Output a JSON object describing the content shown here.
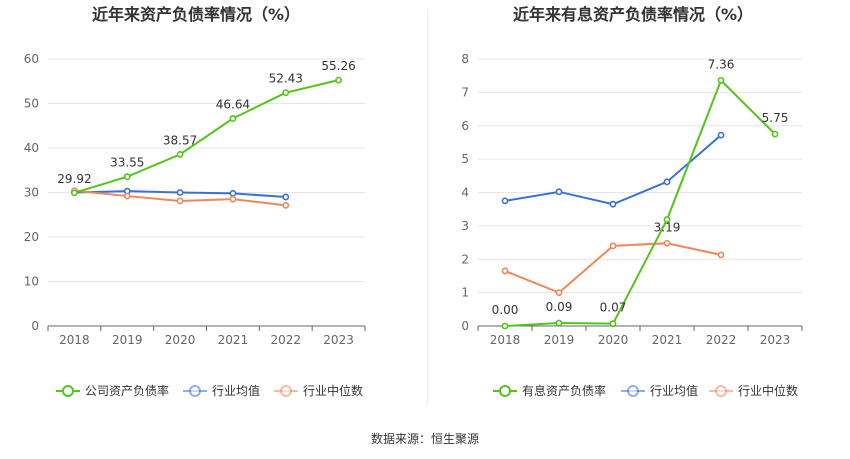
{
  "chart_data": [
    {
      "type": "line",
      "title": "近年来资产负债率情况（%）",
      "categories": [
        "2018",
        "2019",
        "2020",
        "2021",
        "2022",
        "2023"
      ],
      "ylim": [
        0,
        60
      ],
      "yticks": [
        0,
        10,
        20,
        30,
        40,
        50,
        60
      ],
      "grid": true,
      "legend_position": "bottom",
      "series": [
        {
          "name": "公司资产负债率",
          "color": "#52c41a",
          "values": [
            29.92,
            33.55,
            38.57,
            46.64,
            52.43,
            55.26
          ],
          "labels": [
            "29.92",
            "33.55",
            "38.57",
            "46.64",
            "52.43",
            "55.26"
          ]
        },
        {
          "name": "行业均值",
          "color": "#3a70d6",
          "values": [
            30.0,
            30.3,
            30.0,
            29.8,
            29.0,
            null
          ]
        },
        {
          "name": "行业中位数",
          "color": "#f0875a",
          "values": [
            30.4,
            29.2,
            28.1,
            28.5,
            27.1,
            null
          ]
        }
      ]
    },
    {
      "type": "line",
      "title": "近年来有息资产负债率情况（%）",
      "categories": [
        "2018",
        "2019",
        "2020",
        "2021",
        "2022",
        "2023"
      ],
      "ylim": [
        0,
        8
      ],
      "yticks": [
        0,
        1,
        2,
        3,
        4,
        5,
        6,
        7,
        8
      ],
      "grid": true,
      "legend_position": "bottom",
      "series": [
        {
          "name": "有息资产负债率",
          "color": "#52c41a",
          "values": [
            0.0,
            0.09,
            0.07,
            3.19,
            7.36,
            5.75
          ],
          "labels": [
            "0.00",
            "0.09",
            "0.07",
            "3.19",
            "7.36",
            "5.75"
          ]
        },
        {
          "name": "行业均值",
          "color": "#3a70d6",
          "values": [
            3.75,
            4.02,
            3.65,
            4.32,
            5.72,
            null
          ]
        },
        {
          "name": "行业中位数",
          "color": "#f0875a",
          "values": [
            1.65,
            1.0,
            2.4,
            2.48,
            2.13,
            null
          ]
        }
      ]
    }
  ],
  "footer": {
    "source": "数据来源：恒生聚源"
  }
}
